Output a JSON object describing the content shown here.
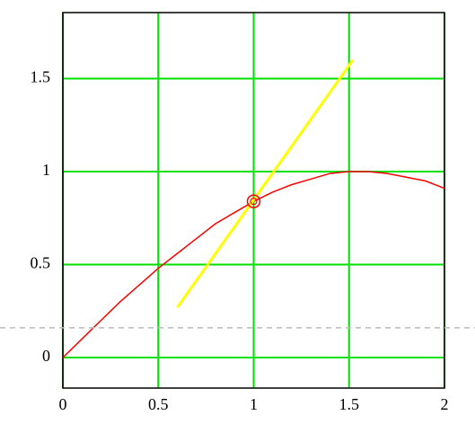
{
  "chart_data": {
    "type": "line",
    "xlim": [
      0,
      2
    ],
    "xticks": [
      0,
      0.5,
      1,
      1.5,
      2
    ],
    "ylim": [
      -0.164,
      1.855
    ],
    "yticks": [
      0,
      0.5,
      1,
      1.5
    ],
    "grid": true,
    "grid_color": "#00e000",
    "hline": 0.16,
    "hline_color": "#bbbbbb",
    "series": [
      {
        "color": "#ff0000",
        "x": [
          0,
          0.1,
          0.2,
          0.3,
          0.4,
          0.5,
          0.6,
          0.7,
          0.8,
          0.9,
          1.0,
          1.1,
          1.2,
          1.3,
          1.4,
          1.5,
          1.6,
          1.7,
          1.8,
          1.9,
          2.0
        ],
        "values": [
          0,
          0.1,
          0.2,
          0.3,
          0.39,
          0.48,
          0.56,
          0.64,
          0.72,
          0.78,
          0.84,
          0.89,
          0.93,
          0.96,
          0.99,
          1.0,
          1.0,
          0.99,
          0.97,
          0.95,
          0.91
        ]
      },
      {
        "color": "#ffff00",
        "x": [
          0.6,
          1.52
        ],
        "values": [
          0.27,
          1.6
        ]
      },
      {
        "color": "#ff0000",
        "marker": true,
        "x": [
          1
        ],
        "values": [
          0.84
        ]
      }
    ]
  }
}
